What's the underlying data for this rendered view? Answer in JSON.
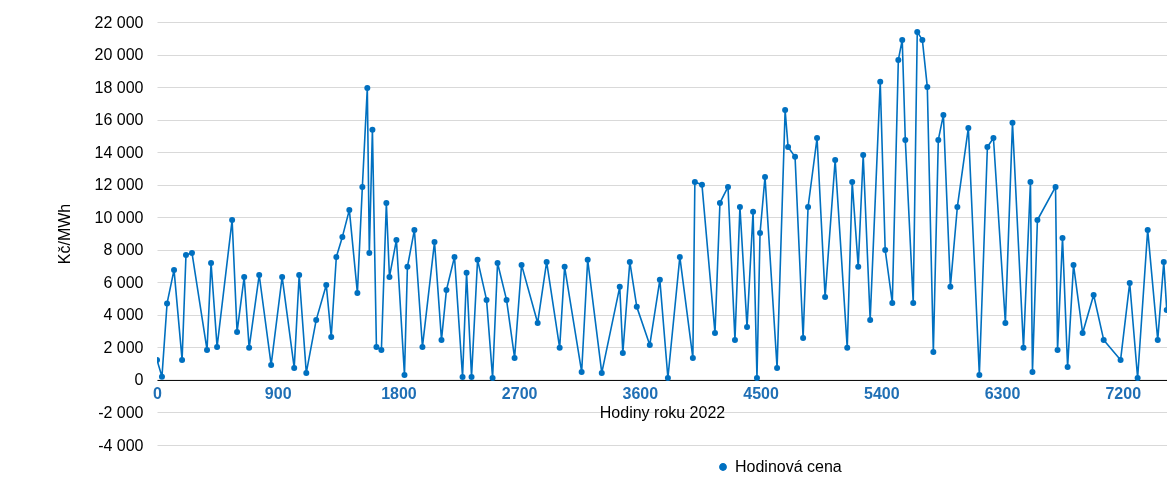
{
  "chart_data": {
    "type": "line",
    "xlabel": "Hodiny roku 2022",
    "ylabel": "Kč/MWh",
    "x": [
      0,
      37,
      75,
      127,
      187,
      216,
      261,
      373,
      403,
      448,
      560,
      597,
      650,
      687,
      762,
      851,
      933,
      1023,
      1060,
      1113,
      1187,
      1262,
      1299,
      1337,
      1382,
      1434,
      1494,
      1531,
      1568,
      1583,
      1606,
      1636,
      1673,
      1710,
      1733,
      1785,
      1845,
      1867,
      1919,
      1979,
      2069,
      2121,
      2158,
      2218,
      2278,
      2308,
      2345,
      2390,
      2457,
      2502,
      2539,
      2606,
      2666,
      2718,
      2838,
      2905,
      3002,
      3039,
      3166,
      3211,
      3316,
      3450,
      3473,
      3525,
      3577,
      3674,
      3749,
      3809,
      3898,
      3995,
      4010,
      4063,
      4160,
      4197,
      4257,
      4309,
      4346,
      4399,
      4444,
      4473,
      4496,
      4533,
      4623,
      4683,
      4705,
      4757,
      4817,
      4854,
      4921,
      4981,
      5056,
      5146,
      5183,
      5228,
      5265,
      5317,
      5392,
      5429,
      5482,
      5527,
      5556,
      5579,
      5638,
      5668,
      5706,
      5743,
      5788,
      5825,
      5863,
      5915,
      5967,
      6049,
      6131,
      6191,
      6236,
      6325,
      6378,
      6460,
      6512,
      6527,
      6564,
      6699,
      6714,
      6751,
      6789,
      6833,
      6901,
      6983,
      7058,
      7184,
      7252,
      7311,
      7386,
      7461,
      7506,
      7528
    ],
    "series": [
      {
        "name": "Hodinová cena",
        "color": "#0070c0",
        "values": [
          1230,
          200,
          4700,
          6760,
          1230,
          7680,
          7800,
          1840,
          7190,
          2030,
          9830,
          2950,
          6330,
          1970,
          6450,
          920,
          6330,
          740,
          6450,
          430,
          3690,
          5840,
          2640,
          7560,
          8790,
          10450,
          5350,
          11860,
          17950,
          7800,
          15370,
          2030,
          1840,
          10880,
          6330,
          8600,
          310,
          6950,
          9220,
          2030,
          8480,
          2460,
          5530,
          7560,
          180,
          6580,
          180,
          7380,
          4920,
          120,
          7190,
          4920,
          1350,
          7070,
          3500,
          7250,
          1970,
          6950,
          490,
          7380,
          430,
          5720,
          1660,
          7250,
          4490,
          2150,
          6150,
          120,
          7560,
          1350,
          12170,
          11990,
          2890,
          10880,
          11860,
          2460,
          10630,
          3260,
          10330,
          120,
          9030,
          12480,
          740,
          16590,
          14320,
          13710,
          2580,
          10630,
          14870,
          5100,
          13520,
          1970,
          12170,
          6950,
          13830,
          3690,
          18320,
          7990,
          4730,
          19670,
          20900,
          14750,
          4730,
          21390,
          20900,
          18010,
          1720,
          14750,
          16290,
          5720,
          10630,
          15490,
          310,
          14320,
          14870,
          3500,
          15800,
          1970,
          12170,
          490,
          9830,
          11860,
          1840,
          8730,
          800,
          7070,
          2890,
          5220,
          2460,
          1230,
          5960,
          120,
          9220,
          2460,
          7250,
          4300
        ]
      }
    ],
    "xlim": [
      0,
      7530
    ],
    "xticks": [
      0,
      900,
      1800,
      2700,
      3600,
      4500,
      5400,
      6300,
      7200
    ],
    "ylim": [
      -4000,
      22000
    ],
    "yticks": [
      {
        "value": -4000,
        "label": "-4 000"
      },
      {
        "value": -2000,
        "label": "-2 000"
      },
      {
        "value": 0,
        "label": "0"
      },
      {
        "value": 2000,
        "label": "2 000"
      },
      {
        "value": 4000,
        "label": "4 000"
      },
      {
        "value": 6000,
        "label": "6 000"
      },
      {
        "value": 8000,
        "label": "8 000"
      },
      {
        "value": 10000,
        "label": "10 000"
      },
      {
        "value": 12000,
        "label": "12 000"
      },
      {
        "value": 14000,
        "label": "14 000"
      },
      {
        "value": 16000,
        "label": "16 000"
      },
      {
        "value": 18000,
        "label": "18 000"
      },
      {
        "value": 20000,
        "label": "20 000"
      },
      {
        "value": 22000,
        "label": "22 000"
      }
    ],
    "grid": "y",
    "legend": "bottom",
    "marker": "circle",
    "line_style": "solid"
  }
}
